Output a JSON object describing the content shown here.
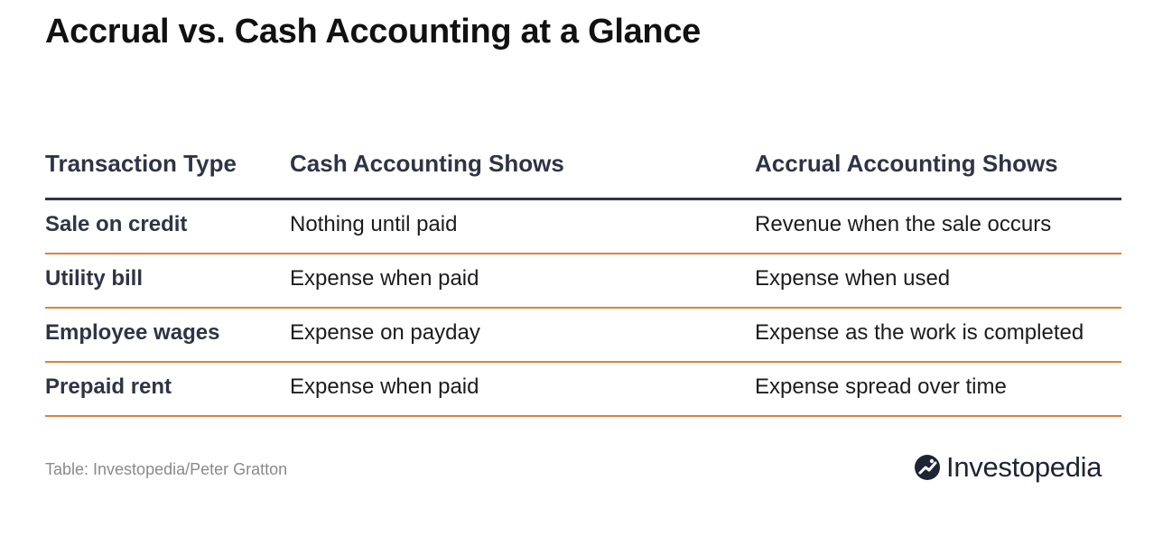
{
  "title": "Accrual vs. Cash Accounting at a Glance",
  "table": {
    "headers": [
      "Transaction Type",
      "Cash Accounting Shows",
      "Accrual Accounting Shows"
    ],
    "rows": [
      [
        "Sale on credit",
        "Nothing until paid",
        "Revenue when the sale occurs"
      ],
      [
        "Utility bill",
        "Expense when paid",
        "Expense when used"
      ],
      [
        "Employee wages",
        "Expense on payday",
        "Expense as the work is completed"
      ],
      [
        "Prepaid rent",
        "Expense when paid",
        "Expense spread over time"
      ]
    ]
  },
  "source": "Table: Investopedia/Peter Gratton",
  "brand": {
    "name": "Investopedia",
    "icon": "investopedia-logo-icon",
    "color": "#1e2433"
  },
  "colors": {
    "header_text": "#2f3445",
    "row_divider": "#d9843b"
  }
}
